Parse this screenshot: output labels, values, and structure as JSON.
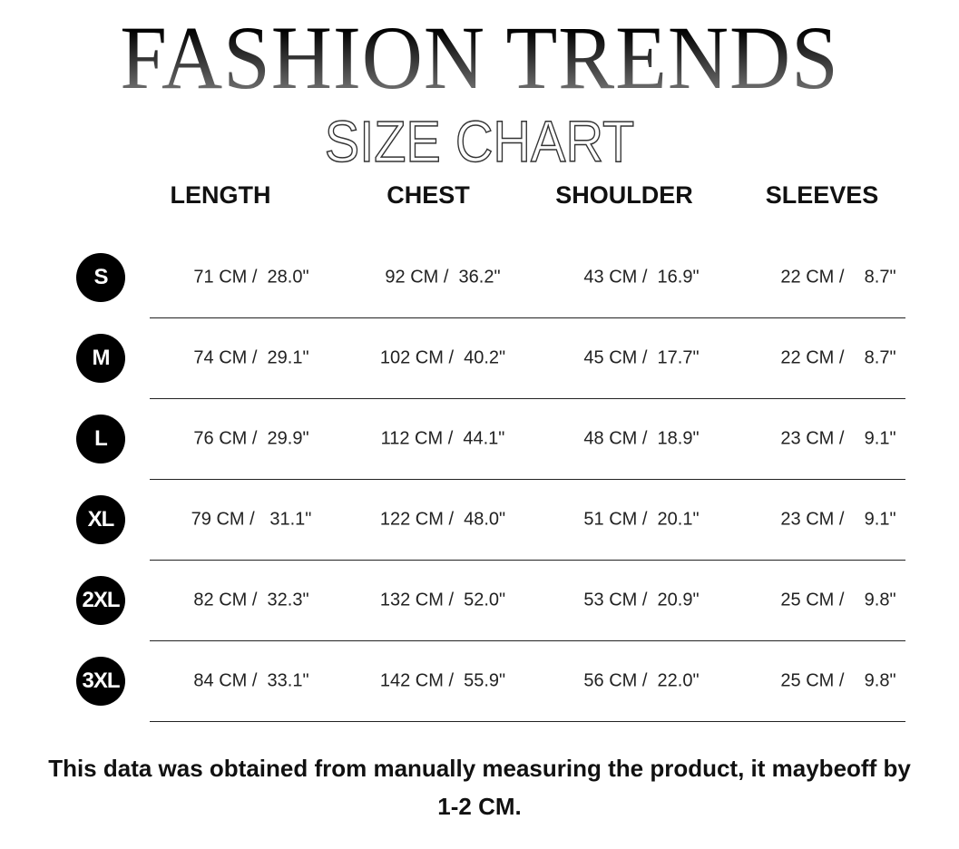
{
  "title": "FASHION TRENDS",
  "subtitle": "SIZE CHART",
  "headers": [
    "LENGTH",
    "CHEST",
    "SHOULDER",
    "SLEEVES"
  ],
  "rows": [
    {
      "size": "S",
      "values": [
        "71 CM /  28.0\"",
        "92 CM /  36.2\"",
        "43 CM /  16.9\"",
        "22 CM /    8.7\""
      ]
    },
    {
      "size": "M",
      "values": [
        "74 CM /  29.1\"",
        "102 CM /  40.2\"",
        "45 CM /  17.7\"",
        "22 CM /    8.7\""
      ]
    },
    {
      "size": "L",
      "values": [
        "76 CM /  29.9\"",
        "112 CM /  44.1\"",
        "48 CM /  18.9\"",
        "23 CM /    9.1\""
      ]
    },
    {
      "size": "XL",
      "values": [
        "79 CM /   31.1\"",
        "122 CM /  48.0\"",
        "51 CM /  20.1\"",
        "23 CM /    9.1\""
      ]
    },
    {
      "size": "2XL",
      "values": [
        "82 CM /  32.3\"",
        "132 CM /  52.0\"",
        "53 CM /  20.9\"",
        "25 CM /    9.8\""
      ]
    },
    {
      "size": "3XL",
      "values": [
        "84 CM /  33.1\"",
        "142 CM /  55.9\"",
        "56 CM /  22.0\"",
        "25 CM /    9.8\""
      ]
    }
  ],
  "note": "This data was obtained from manually measuring the product, it maybeoff by 1-2 CM."
}
